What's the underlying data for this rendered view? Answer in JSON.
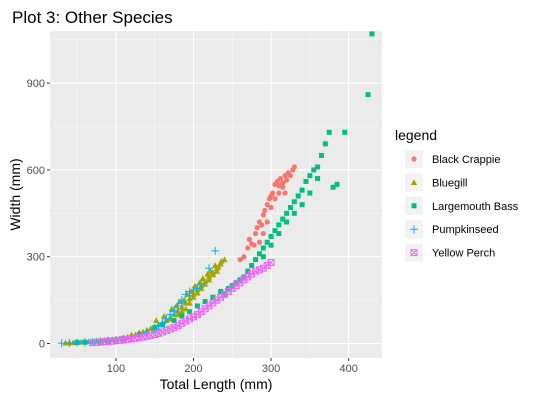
{
  "chart_data": {
    "type": "scatter",
    "title": "Plot 3: Other Species",
    "xlabel": "Total Length (mm)",
    "ylabel": "Width (mm)",
    "xlim": [
      15,
      443
    ],
    "ylim": [
      -50,
      1080
    ],
    "xticks": [
      100,
      200,
      300,
      400
    ],
    "yticks": [
      0,
      300,
      600,
      900
    ],
    "grid": true,
    "legend": {
      "title": "legend",
      "placement": "right"
    },
    "series": [
      {
        "name": "Black Crappie",
        "color": "#F8766D",
        "marker": "circle",
        "points": [
          [
            265,
            300
          ],
          [
            270,
            330
          ],
          [
            275,
            345
          ],
          [
            278,
            340
          ],
          [
            280,
            380
          ],
          [
            282,
            400
          ],
          [
            285,
            420
          ],
          [
            288,
            410
          ],
          [
            290,
            445
          ],
          [
            292,
            460
          ],
          [
            295,
            480
          ],
          [
            298,
            500
          ],
          [
            300,
            510
          ],
          [
            302,
            520
          ],
          [
            305,
            550
          ],
          [
            308,
            560
          ],
          [
            310,
            545
          ],
          [
            312,
            570
          ],
          [
            315,
            555
          ],
          [
            318,
            580
          ],
          [
            320,
            565
          ],
          [
            322,
            590
          ],
          [
            325,
            580
          ],
          [
            328,
            600
          ],
          [
            330,
            610
          ],
          [
            285,
            350
          ],
          [
            290,
            380
          ],
          [
            295,
            420
          ],
          [
            300,
            470
          ],
          [
            305,
            500
          ],
          [
            310,
            520
          ],
          [
            315,
            540
          ],
          [
            260,
            290
          ],
          [
            272,
            360
          ],
          [
            318,
            520
          ]
        ]
      },
      {
        "name": "Bluegill",
        "color": "#A3A500",
        "marker": "triangle",
        "points": [
          [
            35,
            2
          ],
          [
            40,
            3
          ],
          [
            45,
            3
          ],
          [
            50,
            4
          ],
          [
            55,
            5
          ],
          [
            60,
            6
          ],
          [
            65,
            7
          ],
          [
            70,
            8
          ],
          [
            75,
            9
          ],
          [
            80,
            10
          ],
          [
            85,
            11
          ],
          [
            90,
            12
          ],
          [
            95,
            14
          ],
          [
            100,
            15
          ],
          [
            105,
            17
          ],
          [
            110,
            20
          ],
          [
            115,
            23
          ],
          [
            120,
            27
          ],
          [
            125,
            30
          ],
          [
            130,
            35
          ],
          [
            135,
            40
          ],
          [
            140,
            46
          ],
          [
            145,
            52
          ],
          [
            150,
            58
          ],
          [
            155,
            65
          ],
          [
            160,
            72
          ],
          [
            165,
            80
          ],
          [
            170,
            90
          ],
          [
            175,
            100
          ],
          [
            180,
            112
          ],
          [
            185,
            125
          ],
          [
            190,
            140
          ],
          [
            195,
            155
          ],
          [
            200,
            170
          ],
          [
            205,
            185
          ],
          [
            210,
            200
          ],
          [
            215,
            215
          ],
          [
            220,
            230
          ],
          [
            225,
            245
          ],
          [
            230,
            260
          ],
          [
            235,
            275
          ],
          [
            240,
            290
          ],
          [
            195,
            140
          ],
          [
            200,
            160
          ],
          [
            205,
            175
          ],
          [
            210,
            190
          ],
          [
            215,
            205
          ],
          [
            220,
            220
          ],
          [
            225,
            238
          ],
          [
            230,
            250
          ],
          [
            180,
            100
          ],
          [
            185,
            110
          ],
          [
            190,
            120
          ],
          [
            170,
            85
          ],
          [
            160,
            70
          ],
          [
            150,
            55
          ],
          [
            140,
            45
          ],
          [
            130,
            38
          ],
          [
            120,
            30
          ],
          [
            178,
            130
          ],
          [
            188,
            150
          ],
          [
            198,
            180
          ],
          [
            208,
            210
          ],
          [
            218,
            240
          ],
          [
            228,
            270
          ],
          [
            236,
            285
          ],
          [
            232,
            265
          ],
          [
            222,
            250
          ],
          [
            212,
            225
          ],
          [
            202,
            200
          ],
          [
            192,
            170
          ],
          [
            182,
            145
          ],
          [
            172,
            120
          ],
          [
            162,
            95
          ],
          [
            152,
            80
          ]
        ]
      },
      {
        "name": "Largemouth Bass",
        "color": "#00BF7D",
        "marker": "square",
        "points": [
          [
            50,
            4
          ],
          [
            60,
            5
          ],
          [
            75,
            8
          ],
          [
            90,
            12
          ],
          [
            110,
            18
          ],
          [
            130,
            30
          ],
          [
            150,
            55
          ],
          [
            160,
            65
          ],
          [
            175,
            80
          ],
          [
            185,
            95
          ],
          [
            195,
            110
          ],
          [
            205,
            130
          ],
          [
            215,
            145
          ],
          [
            225,
            160
          ],
          [
            235,
            180
          ],
          [
            245,
            190
          ],
          [
            255,
            210
          ],
          [
            265,
            230
          ],
          [
            270,
            250
          ],
          [
            275,
            270
          ],
          [
            280,
            290
          ],
          [
            285,
            310
          ],
          [
            290,
            330
          ],
          [
            295,
            350
          ],
          [
            300,
            370
          ],
          [
            305,
            390
          ],
          [
            310,
            410
          ],
          [
            315,
            430
          ],
          [
            320,
            450
          ],
          [
            325,
            470
          ],
          [
            330,
            490
          ],
          [
            335,
            510
          ],
          [
            340,
            530
          ],
          [
            345,
            560
          ],
          [
            350,
            580
          ],
          [
            355,
            600
          ],
          [
            360,
            610
          ],
          [
            365,
            650
          ],
          [
            370,
            690
          ],
          [
            375,
            730
          ],
          [
            380,
            540
          ],
          [
            385,
            550
          ],
          [
            395,
            730
          ],
          [
            425,
            860
          ],
          [
            430,
            1070
          ],
          [
            240,
            170
          ],
          [
            250,
            200
          ],
          [
            260,
            220
          ],
          [
            290,
            300
          ],
          [
            300,
            340
          ],
          [
            310,
            380
          ],
          [
            320,
            420
          ],
          [
            330,
            450
          ],
          [
            340,
            480
          ],
          [
            350,
            520
          ],
          [
            360,
            570
          ]
        ]
      },
      {
        "name": "Pumpkinseed",
        "color": "#00B0F6",
        "marker": "plus",
        "points": [
          [
            30,
            1
          ],
          [
            40,
            2
          ],
          [
            50,
            3
          ],
          [
            60,
            4
          ],
          [
            70,
            5
          ],
          [
            80,
            7
          ],
          [
            90,
            9
          ],
          [
            100,
            12
          ],
          [
            110,
            15
          ],
          [
            120,
            20
          ],
          [
            130,
            28
          ],
          [
            140,
            38
          ],
          [
            150,
            50
          ],
          [
            155,
            60
          ],
          [
            160,
            70
          ],
          [
            165,
            85
          ],
          [
            170,
            100
          ],
          [
            175,
            115
          ],
          [
            180,
            130
          ],
          [
            185,
            150
          ],
          [
            190,
            170
          ],
          [
            195,
            180
          ],
          [
            200,
            185
          ],
          [
            210,
            205
          ],
          [
            220,
            260
          ],
          [
            228,
            320
          ],
          [
            175,
            110
          ],
          [
            185,
            140
          ],
          [
            195,
            165
          ],
          [
            205,
            190
          ]
        ]
      },
      {
        "name": "Yellow Perch",
        "color": "#E76BF3",
        "marker": "boxcross",
        "points": [
          [
            70,
            3
          ],
          [
            75,
            4
          ],
          [
            80,
            5
          ],
          [
            85,
            6
          ],
          [
            90,
            7
          ],
          [
            95,
            8
          ],
          [
            100,
            10
          ],
          [
            105,
            11
          ],
          [
            110,
            12
          ],
          [
            115,
            14
          ],
          [
            120,
            16
          ],
          [
            125,
            18
          ],
          [
            130,
            20
          ],
          [
            135,
            22
          ],
          [
            140,
            25
          ],
          [
            145,
            28
          ],
          [
            150,
            31
          ],
          [
            155,
            35
          ],
          [
            160,
            40
          ],
          [
            165,
            45
          ],
          [
            170,
            50
          ],
          [
            175,
            55
          ],
          [
            180,
            62
          ],
          [
            185,
            70
          ],
          [
            190,
            78
          ],
          [
            195,
            85
          ],
          [
            200,
            92
          ],
          [
            205,
            100
          ],
          [
            210,
            110
          ],
          [
            215,
            120
          ],
          [
            220,
            130
          ],
          [
            225,
            140
          ],
          [
            230,
            150
          ],
          [
            235,
            160
          ],
          [
            240,
            170
          ],
          [
            245,
            180
          ],
          [
            250,
            190
          ],
          [
            255,
            200
          ],
          [
            260,
            210
          ],
          [
            265,
            220
          ],
          [
            270,
            230
          ],
          [
            275,
            240
          ],
          [
            280,
            250
          ],
          [
            285,
            255
          ],
          [
            290,
            260
          ],
          [
            295,
            270
          ],
          [
            300,
            280
          ]
        ]
      }
    ]
  }
}
